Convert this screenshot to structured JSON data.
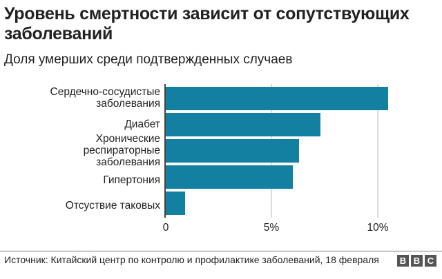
{
  "header": {
    "title": "Уровень смертности зависит от сопутствующих заболеваний",
    "subtitle": "Доля умерших среди подтвержденных случаев"
  },
  "chart": {
    "bar_color": "#1380A1",
    "categories": [
      "Сердечно-сосудистые\nзаболевания",
      "Диабет",
      "Хронические\nреспираторные\nзаболевания",
      "Гипертония",
      "Отсуствие таковых"
    ],
    "ticks": [
      "0",
      "5%",
      "10%"
    ]
  },
  "footer": {
    "source": "Источник: Китайский центр по контролю и профилактике заболеваний, 18 февраля",
    "logo": [
      "B",
      "B",
      "C"
    ]
  },
  "chart_data": {
    "type": "bar",
    "orientation": "horizontal",
    "title": "Уровень смертности зависит от сопутствующих заболеваний",
    "subtitle": "Доля умерших среди подтвержденных случаев",
    "categories": [
      "Сердечно-сосудистые заболевания",
      "Диабет",
      "Хронические респираторные заболевания",
      "Гипертония",
      "Отсуствие таковых"
    ],
    "values": [
      10.5,
      7.3,
      6.3,
      6.0,
      0.9
    ],
    "xlabel": "",
    "ylabel": "",
    "xlim": [
      0,
      10.5
    ],
    "xticks": [
      "0",
      "5%",
      "10%"
    ],
    "grid": true,
    "legend": null,
    "unit": "%"
  }
}
